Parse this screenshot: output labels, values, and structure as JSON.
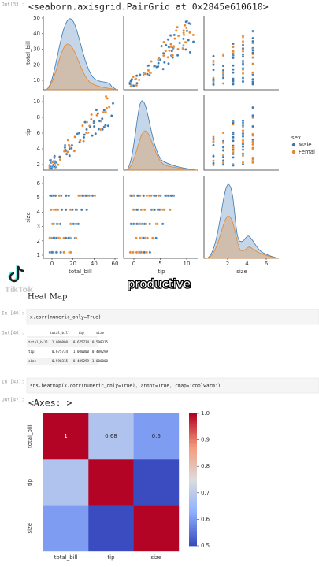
{
  "pairplot_cell": {
    "prompt": "Out[33]:",
    "output": "<seaborn.axisgrid.PairGrid at 0x2845e610610>"
  },
  "pairplot": {
    "y_labels": [
      "total_bill",
      "tip",
      "size"
    ],
    "x_labels": [
      "total_bill",
      "tip",
      "size"
    ],
    "yticks": [
      [
        10,
        20,
        30,
        40,
        50
      ],
      [
        2,
        4,
        6,
        8,
        10
      ],
      [
        1,
        2,
        3,
        4,
        5,
        6
      ]
    ],
    "xticks": [
      [
        0,
        20,
        40,
        60
      ],
      [
        0,
        5,
        10
      ],
      [
        2,
        4,
        6
      ]
    ],
    "legend": {
      "title": "sex",
      "items": [
        {
          "name": "Male",
          "color": "#3a78b0"
        },
        {
          "name": "Femal",
          "color": "#e7862b"
        }
      ]
    }
  },
  "watermark": "TikTok",
  "caption": "productive",
  "heading": "Heat Map",
  "corr_cell": {
    "prompt": "In [40]:",
    "code": "x.corr(numeric_only=True)"
  },
  "corr_output": {
    "prompt": "Out[40]:",
    "columns": [
      "total_bill",
      "tip",
      "size"
    ],
    "rows": [
      [
        "total_bill",
        "1.000000",
        "0.675734",
        "0.598315"
      ],
      [
        "tip",
        "0.675734",
        "1.000000",
        "0.489299"
      ],
      [
        "size",
        "0.598315",
        "0.489299",
        "1.000000"
      ]
    ]
  },
  "heatmap_cell": {
    "prompt": "In [43]:",
    "code": "sns.heatmap(x.corr(numeric_only=True), annot=True, cmap='coolwarm')"
  },
  "axes_output": {
    "prompt": "Out[47]:",
    "text": "<Axes: >"
  },
  "chart_data": {
    "type": "heatmap",
    "x_categories": [
      "total_bill",
      "tip",
      "size"
    ],
    "y_categories": [
      "total_bill",
      "tip",
      "size"
    ],
    "values": [
      [
        1,
        0.68,
        0.6
      ],
      [
        0.68,
        1,
        0.49
      ],
      [
        0.6,
        0.49,
        1
      ]
    ],
    "value_labels": [
      [
        "1",
        "0.68",
        "0.6"
      ],
      [
        null,
        null,
        null
      ],
      [
        null,
        null,
        null
      ]
    ],
    "colormap": "coolwarm",
    "clim": [
      0.5,
      1
    ],
    "colorbar_ticks": [
      0.5,
      0.6,
      0.7,
      0.8,
      0.9,
      {
        "value": 1,
        "label": "1.0"
      }
    ]
  }
}
